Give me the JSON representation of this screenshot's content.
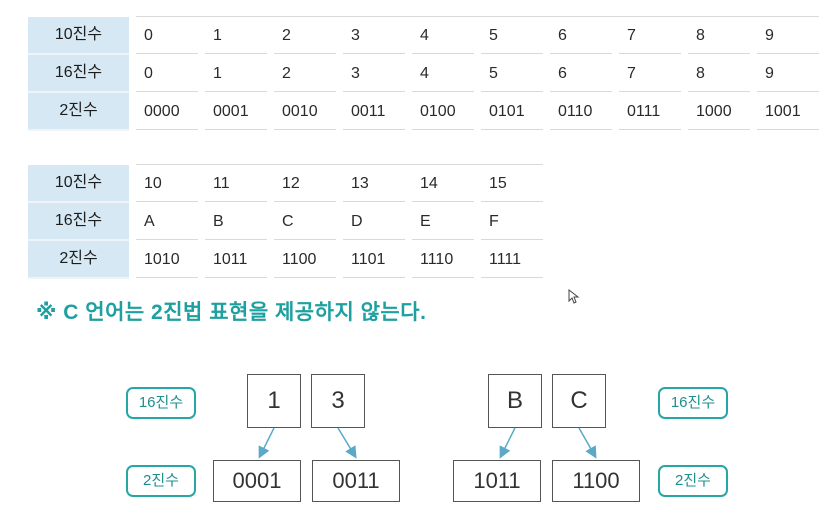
{
  "table1": {
    "row_headers": [
      "10진수",
      "16진수",
      "2진수"
    ],
    "rows": [
      [
        "0",
        "1",
        "2",
        "3",
        "4",
        "5",
        "6",
        "7",
        "8",
        "9"
      ],
      [
        "0",
        "1",
        "2",
        "3",
        "4",
        "5",
        "6",
        "7",
        "8",
        "9"
      ],
      [
        "0000",
        "0001",
        "0010",
        "0011",
        "0100",
        "0101",
        "0110",
        "0111",
        "1000",
        "1001"
      ]
    ]
  },
  "table2": {
    "row_headers": [
      "10진수",
      "16진수",
      "2진수"
    ],
    "rows": [
      [
        "10",
        "11",
        "12",
        "13",
        "14",
        "15"
      ],
      [
        "A",
        "B",
        "C",
        "D",
        "E",
        "F"
      ],
      [
        "1010",
        "1011",
        "1100",
        "1101",
        "1110",
        "1111"
      ]
    ]
  },
  "note": "※  C 언어는 2진법 표현을 제공하지 않는다.",
  "diagram": {
    "left": {
      "hex_tag": "16진수",
      "bin_tag": "2진수",
      "hex_digits": [
        "1",
        "3"
      ],
      "bin_groups": [
        "0001",
        "0011"
      ]
    },
    "right": {
      "hex_tag": "16진수",
      "bin_tag": "2진수",
      "hex_digits": [
        "B",
        "C"
      ],
      "bin_groups": [
        "1011",
        "1100"
      ]
    },
    "colors": {
      "accent": "#27a6a6",
      "arrow": "#5aa9c9",
      "header_bg": "#d6e8f4"
    }
  }
}
